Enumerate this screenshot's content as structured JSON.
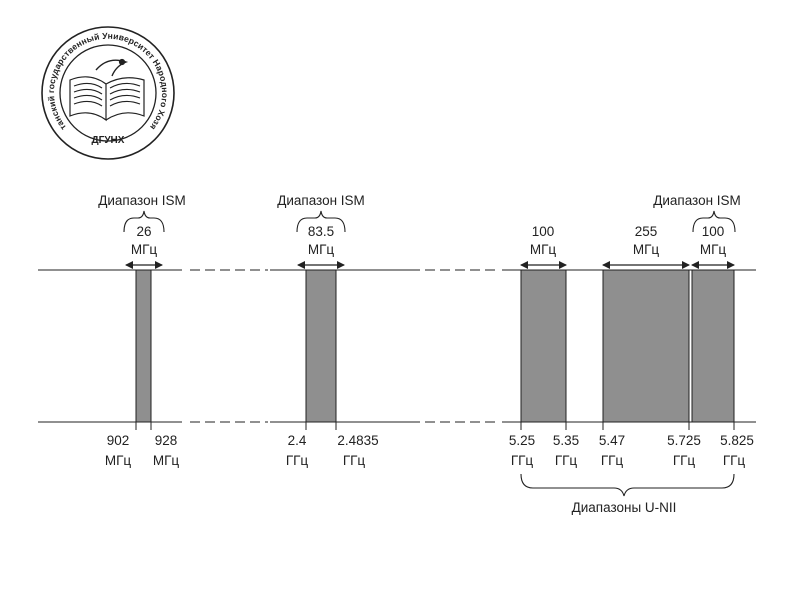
{
  "seal": {
    "ring_text": "Дагестанский государственный Университет Народного Хозяйства",
    "abbrev": "ДГУНХ"
  },
  "diagram": {
    "band_color": "#8f8f8f",
    "groups": [
      {
        "id": "ism-900",
        "title": "Диапазон ISM",
        "width_line1": "26",
        "width_line2": "МГц",
        "edges": [
          {
            "value": "902",
            "unit": "МГц"
          },
          {
            "value": "928",
            "unit": "МГц"
          }
        ]
      },
      {
        "id": "ism-2400",
        "title": "Диапазон ISM",
        "width_line1": "83.5",
        "width_line2": "МГц",
        "edges": [
          {
            "value": "2.4",
            "unit": "ГГц"
          },
          {
            "value": "2.4835",
            "unit": "ГГц"
          }
        ]
      },
      {
        "id": "unii-low",
        "title": "",
        "width_line1": "100",
        "width_line2": "МГц",
        "edges": [
          {
            "value": "5.25",
            "unit": "ГГц"
          },
          {
            "value": "5.35",
            "unit": "ГГц"
          }
        ]
      },
      {
        "id": "unii-mid",
        "title": "",
        "width_line1": "255",
        "width_line2": "МГц",
        "edges": [
          {
            "value": "5.47",
            "unit": "ГГц"
          },
          {
            "value": "5.725",
            "unit": "ГГц"
          }
        ]
      },
      {
        "id": "ism-5800",
        "title": "Диапазон ISM",
        "width_line1": "100",
        "width_line2": "МГц",
        "edges": [
          {
            "value": "5.825",
            "unit": "ГГц"
          }
        ]
      }
    ],
    "unii_label": "Диапазоны U-NII"
  }
}
